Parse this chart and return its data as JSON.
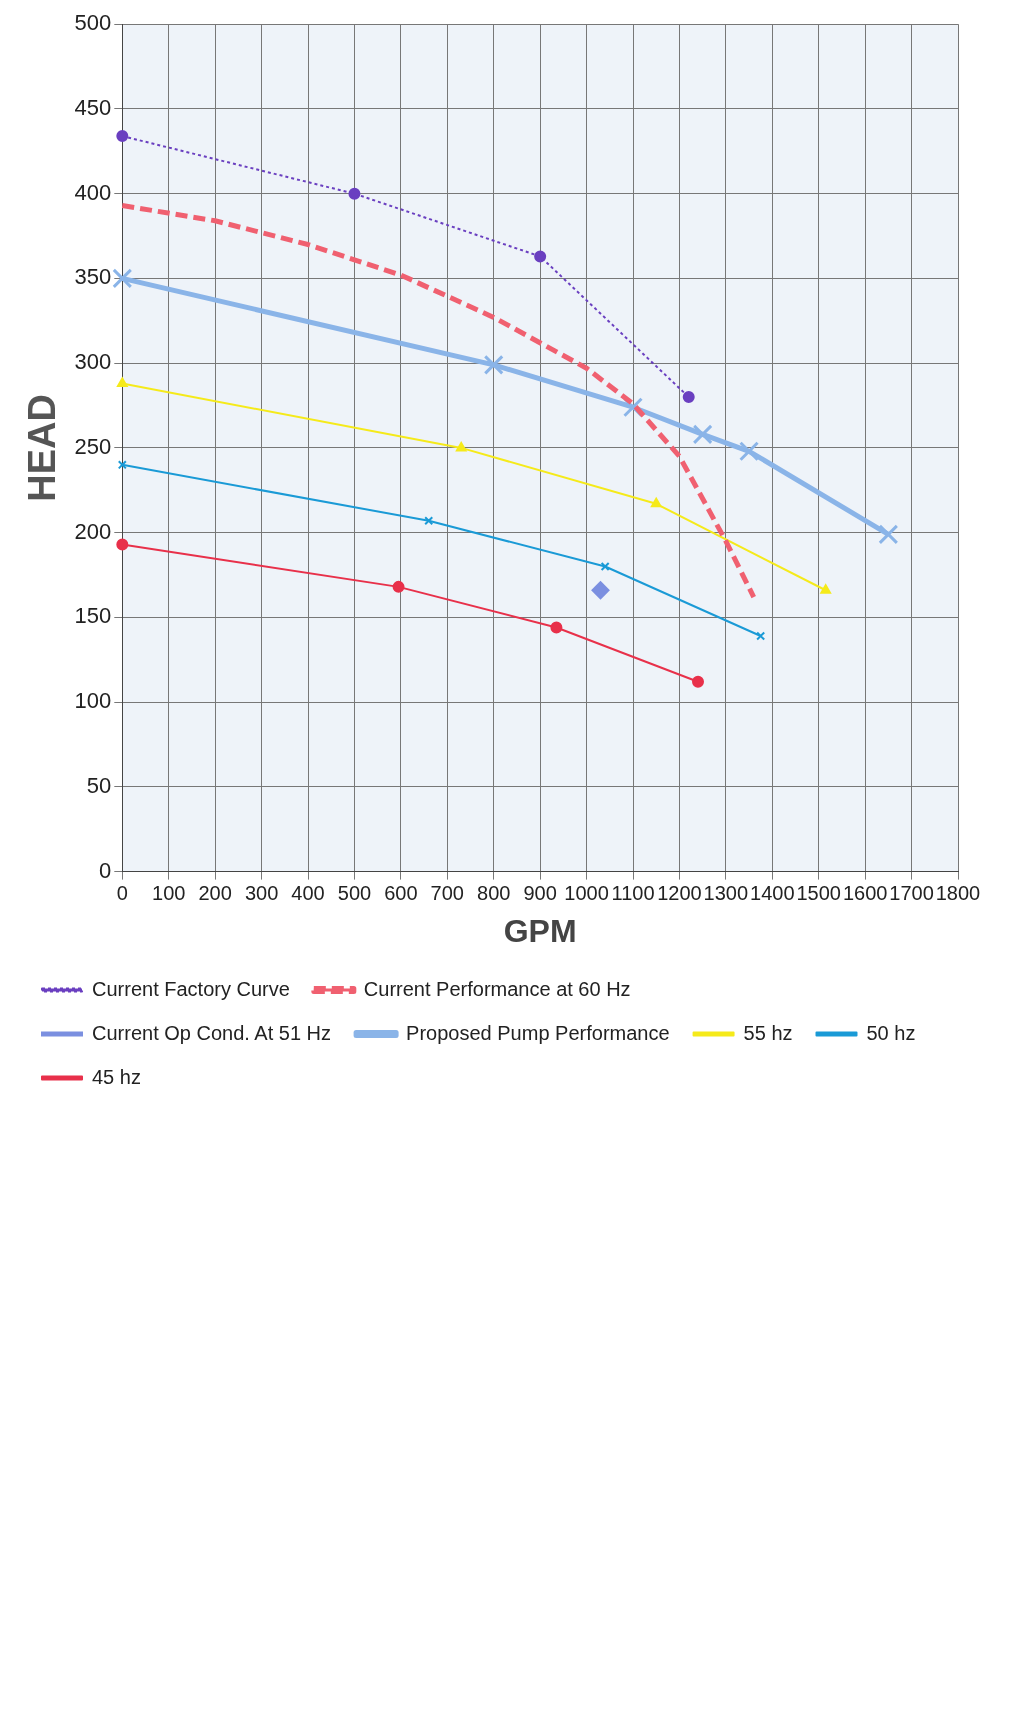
{
  "chart_data": {
    "type": "line",
    "xlabel": "GPM",
    "ylabel": "HEAD",
    "xlim": [
      0,
      1800
    ],
    "xticks": [
      0,
      100,
      200,
      300,
      400,
      500,
      600,
      700,
      800,
      900,
      1000,
      1100,
      1200,
      1300,
      1400,
      1500,
      1600,
      1700,
      1800
    ],
    "ylim": [
      0,
      500
    ],
    "yticks": [
      0,
      50,
      100,
      150,
      200,
      250,
      300,
      350,
      400,
      450,
      500
    ],
    "grid": true,
    "legend": "bottom",
    "series": [
      {
        "name": "Current Factory Curve",
        "color": "#6a3fc0",
        "marker": "circle",
        "line_style": "dotted",
        "x": [
          0,
          500,
          900,
          1220
        ],
        "values": [
          434,
          400,
          363,
          280
        ]
      },
      {
        "name": "Current Performance at 60 Hz",
        "color": "#f06070",
        "marker": "none",
        "line_style": "dashed",
        "x": [
          0,
          200,
          400,
          600,
          800,
          1000,
          1100,
          1200,
          1300,
          1360
        ],
        "values": [
          393,
          384,
          370,
          352,
          327,
          297,
          276,
          245,
          195,
          162
        ]
      },
      {
        "name": "Current Op Cond. At 51 Hz",
        "type": "scatter",
        "color": "#7b8fe0",
        "marker": "diamond",
        "x": [
          1030
        ],
        "values": [
          166
        ]
      },
      {
        "name": "Proposed Pump Performance",
        "color": "#8ab4e8",
        "marker": "cross",
        "line_style": "solid",
        "x": [
          0,
          800,
          1100,
          1250,
          1350,
          1650
        ],
        "values": [
          350,
          299,
          274,
          258,
          248,
          199
        ]
      },
      {
        "name": "55 hz",
        "color": "#f5ea1a",
        "marker": "triangle",
        "line_style": "solid",
        "x": [
          0,
          730,
          1150,
          1515
        ],
        "values": [
          288,
          250,
          217,
          166
        ]
      },
      {
        "name": "50 hz",
        "color": "#1a9ad6",
        "marker": "cross",
        "line_style": "solid",
        "x": [
          0,
          660,
          1040,
          1375
        ],
        "values": [
          240,
          207,
          180,
          139
        ]
      },
      {
        "name": "45 hz",
        "color": "#e8304a",
        "marker": "circle",
        "line_style": "solid",
        "x": [
          0,
          595,
          935,
          1240
        ],
        "values": [
          193,
          168,
          144,
          112
        ]
      }
    ]
  }
}
